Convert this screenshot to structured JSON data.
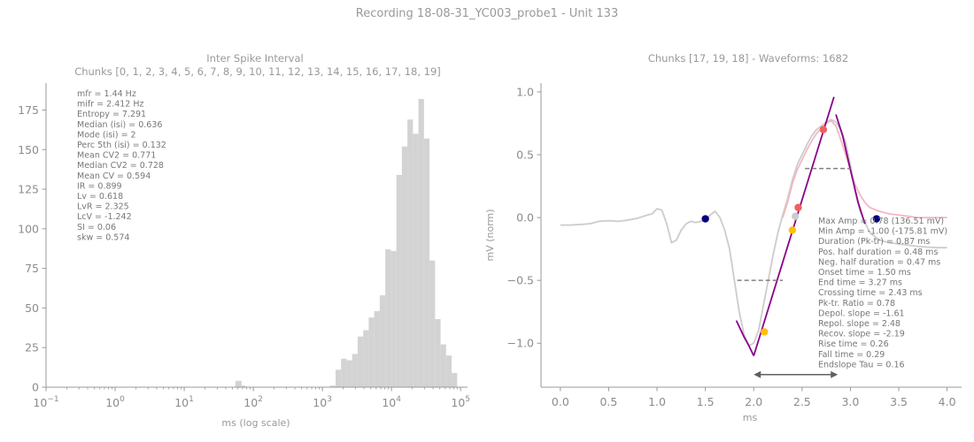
{
  "figure": {
    "suptitle": "Recording 18-08-31_YC003_probe1 - Unit 133"
  },
  "chart_data": [
    {
      "type": "bar",
      "title_line1": "Inter Spike Interval",
      "title_line2": "Chunks [0, 1, 2, 3, 4, 5, 6, 7, 8, 9, 10, 11, 12, 13, 14, 15, 16, 17, 18, 19]",
      "xlabel": "ms (log scale)",
      "ylabel": "",
      "xscale": "log",
      "xlim_log10": [
        -1,
        5.1
      ],
      "ylim": [
        0,
        192
      ],
      "xticks": [
        {
          "pow": -1,
          "base": "10",
          "exp": "−1"
        },
        {
          "pow": 0,
          "base": "10",
          "exp": "0"
        },
        {
          "pow": 1,
          "base": "10",
          "exp": "1"
        },
        {
          "pow": 2,
          "base": "10",
          "exp": "2"
        },
        {
          "pow": 3,
          "base": "10",
          "exp": "3"
        },
        {
          "pow": 4,
          "base": "10",
          "exp": "4"
        },
        {
          "pow": 5,
          "base": "10",
          "exp": "5"
        }
      ],
      "yticks": [
        0,
        25,
        50,
        75,
        100,
        125,
        150,
        175
      ],
      "bar_color": "#d3d3d3",
      "bins": [
        {
          "x0": 1.74,
          "x1": 1.83,
          "h": 4
        },
        {
          "x0": 1.83,
          "x1": 1.89,
          "h": 1
        },
        {
          "x0": 3.11,
          "x1": 3.19,
          "h": 1
        },
        {
          "x0": 3.19,
          "x1": 3.27,
          "h": 11
        },
        {
          "x0": 3.27,
          "x1": 3.35,
          "h": 18
        },
        {
          "x0": 3.35,
          "x1": 3.43,
          "h": 17
        },
        {
          "x0": 3.43,
          "x1": 3.51,
          "h": 21
        },
        {
          "x0": 3.51,
          "x1": 3.59,
          "h": 32
        },
        {
          "x0": 3.59,
          "x1": 3.67,
          "h": 36
        },
        {
          "x0": 3.67,
          "x1": 3.75,
          "h": 44
        },
        {
          "x0": 3.75,
          "x1": 3.83,
          "h": 48
        },
        {
          "x0": 3.83,
          "x1": 3.91,
          "h": 58
        },
        {
          "x0": 3.91,
          "x1": 3.99,
          "h": 87
        },
        {
          "x0": 3.99,
          "x1": 4.07,
          "h": 86
        },
        {
          "x0": 4.07,
          "x1": 4.15,
          "h": 134
        },
        {
          "x0": 4.15,
          "x1": 4.23,
          "h": 152
        },
        {
          "x0": 4.23,
          "x1": 4.31,
          "h": 169
        },
        {
          "x0": 4.31,
          "x1": 4.39,
          "h": 160
        },
        {
          "x0": 4.39,
          "x1": 4.47,
          "h": 182
        },
        {
          "x0": 4.47,
          "x1": 4.55,
          "h": 157
        },
        {
          "x0": 4.55,
          "x1": 4.63,
          "h": 80
        },
        {
          "x0": 4.63,
          "x1": 4.71,
          "h": 43
        },
        {
          "x0": 4.71,
          "x1": 4.79,
          "h": 27
        },
        {
          "x0": 4.79,
          "x1": 4.87,
          "h": 20
        },
        {
          "x0": 4.87,
          "x1": 4.95,
          "h": 9
        }
      ],
      "stats": [
        "mfr = 1.44 Hz",
        "mifr = 2.412 Hz",
        "Entropy = 7.291",
        "Median (isi) = 0.636",
        "Mode (isi) = 2",
        "Perc 5th (isi) = 0.132",
        "Mean CV2 = 0.771",
        "Median CV2 = 0.728",
        "Mean CV = 0.594",
        "IR = 0.899",
        "Lv = 0.618",
        "LvR = 2.325",
        "LcV = -1.242",
        "SI = 0.06",
        "skw = 0.574"
      ]
    },
    {
      "type": "line",
      "title": "Chunks [17, 19, 18] - Waveforms: 1682",
      "xlabel": "ms",
      "ylabel": "mV (norm)",
      "xlim": [
        -0.2,
        4.15
      ],
      "ylim": [
        -1.35,
        1.07
      ],
      "xticks": [
        "0.0",
        "0.5",
        "1.0",
        "1.5",
        "2.0",
        "2.5",
        "3.0",
        "3.5",
        "4.0"
      ],
      "xtick_values": [
        0,
        0.5,
        1,
        1.5,
        2,
        2.5,
        3,
        3.5,
        4
      ],
      "yticks": [
        "1.0",
        "0.5",
        "0.0",
        "−0.5",
        "−1.0"
      ],
      "ytick_values": [
        1,
        0.5,
        0,
        -0.5,
        -1
      ],
      "series": [
        {
          "role": "waveform",
          "color": "#cccccc",
          "x": [
            0,
            0.1,
            0.2,
            0.3,
            0.4,
            0.5,
            0.6,
            0.7,
            0.8,
            0.9,
            0.95,
            1.0,
            1.05,
            1.1,
            1.15,
            1.2,
            1.25,
            1.3,
            1.35,
            1.4,
            1.45,
            1.5,
            1.55,
            1.6,
            1.65,
            1.7,
            1.75,
            1.8,
            1.85,
            1.9,
            1.95,
            2.0,
            2.05,
            2.1,
            2.15,
            2.2,
            2.25,
            2.3,
            2.35,
            2.4,
            2.45,
            2.5,
            2.55,
            2.6,
            2.65,
            2.7,
            2.75,
            2.8,
            2.85,
            2.9,
            2.95,
            3.0,
            3.05,
            3.1,
            3.2,
            3.3,
            3.4,
            3.5,
            3.6,
            3.7,
            3.8,
            3.9,
            4.0
          ],
          "y": [
            -0.06,
            -0.06,
            -0.055,
            -0.05,
            -0.03,
            -0.025,
            -0.03,
            -0.02,
            -0.005,
            0.02,
            0.03,
            0.07,
            0.06,
            -0.05,
            -0.2,
            -0.18,
            -0.1,
            -0.05,
            -0.03,
            -0.04,
            -0.03,
            -0.02,
            0.02,
            0.05,
            0.0,
            -0.1,
            -0.25,
            -0.5,
            -0.75,
            -0.93,
            -1.02,
            -1.0,
            -0.9,
            -0.7,
            -0.5,
            -0.3,
            -0.12,
            0.02,
            0.15,
            0.3,
            0.42,
            0.5,
            0.58,
            0.65,
            0.7,
            0.73,
            0.76,
            0.78,
            0.76,
            0.7,
            0.6,
            0.42,
            0.2,
            0.05,
            -0.12,
            -0.18,
            -0.2,
            -0.21,
            -0.22,
            -0.23,
            -0.235,
            -0.24,
            -0.24
          ]
        },
        {
          "role": "fit",
          "color": "#f4b8c1",
          "x": [
            2.3,
            2.35,
            2.4,
            2.45,
            2.5,
            2.55,
            2.6,
            2.65,
            2.7,
            2.75,
            2.8,
            2.85,
            2.9,
            2.95,
            3.0,
            3.05,
            3.1,
            3.15,
            3.2,
            3.3,
            3.4,
            3.5,
            3.6,
            3.7,
            3.8,
            3.9,
            4.0
          ],
          "y": [
            0.0,
            0.12,
            0.27,
            0.38,
            0.46,
            0.54,
            0.61,
            0.67,
            0.71,
            0.75,
            0.77,
            0.73,
            0.62,
            0.5,
            0.38,
            0.26,
            0.18,
            0.12,
            0.08,
            0.05,
            0.03,
            0.02,
            0.01,
            0.0,
            0.0,
            0.0,
            0.0
          ]
        },
        {
          "role": "depol-slope",
          "color": "#8b008b",
          "x": [
            1.82,
            1.9,
            1.95,
            2.0
          ],
          "y": [
            -0.82,
            -0.95,
            -1.02,
            -1.1
          ]
        },
        {
          "role": "repol-slope",
          "color": "#8b008b",
          "x": [
            2.0,
            2.83
          ],
          "y": [
            -1.1,
            0.96
          ]
        },
        {
          "role": "recov-slope",
          "color": "#8b008b",
          "x": [
            2.85,
            2.92,
            3.0,
            3.08,
            3.15
          ],
          "y": [
            0.82,
            0.65,
            0.38,
            0.12,
            -0.05
          ]
        }
      ],
      "dashed_lines": [
        {
          "x0": 1.83,
          "x1": 2.3,
          "y": -0.5,
          "color": "#808080"
        },
        {
          "x0": 2.53,
          "x1": 3.0,
          "y": 0.39,
          "color": "#808080"
        }
      ],
      "duration_arrow": {
        "x0": 2.0,
        "x1": 2.87,
        "y": -1.25,
        "color": "#606060"
      },
      "points": [
        {
          "x": 1.5,
          "y": -0.01,
          "color": "#000080"
        },
        {
          "x": 3.27,
          "y": -0.01,
          "color": "#000080"
        },
        {
          "x": 2.11,
          "y": -0.91,
          "color": "#ffc000"
        },
        {
          "x": 2.4,
          "y": -0.1,
          "color": "#ffc000"
        },
        {
          "x": 2.43,
          "y": 0.01,
          "color": "#cccccc"
        },
        {
          "x": 2.46,
          "y": 0.08,
          "color": "#f06060"
        },
        {
          "x": 2.72,
          "y": 0.7,
          "color": "#f06060"
        }
      ],
      "stats": [
        "Max Amp = 0.78 (136.51 mV)",
        "Min Amp = -1.00 (-175.81 mV)",
        "Duration (Pk-tr) = 0.87 ms",
        "Pos. half duration = 0.48 ms",
        "Neg. half duration = 0.47 ms",
        "Onset time = 1.50 ms",
        "End time = 3.27 ms",
        "Crossing time = 2.43 ms",
        "Pk-tr. Ratio = 0.78",
        "Depol. slope = -1.61",
        "Repol. slope = 2.48",
        "Recov. slope = -2.19",
        "Rise time = 0.26",
        "Fall time = 0.29",
        "Endslope Tau = 0.16"
      ]
    }
  ]
}
